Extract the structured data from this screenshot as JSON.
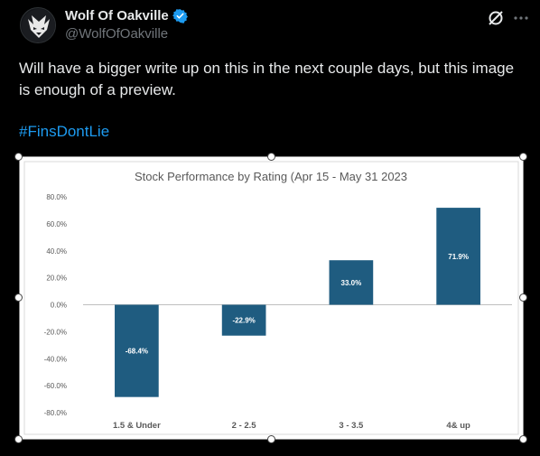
{
  "tweet": {
    "display_name": "Wolf Of Oakville",
    "handle": "@WolfOfOakville",
    "text": "Will have a bigger write up on this in the next couple days, but this image is enough of a preview.",
    "hashtag": "#FinsDontLie",
    "icons": {
      "verified": "verified-badge-icon",
      "grok": "grok-icon",
      "more": "more-options-icon",
      "avatar": "wolf-logo-avatar"
    },
    "colors": {
      "background": "#000000",
      "link": "#1d9bf0",
      "verified": "#1d9bf0",
      "muted": "#71767b"
    }
  },
  "chart_data": {
    "type": "bar",
    "title": "Stock Performance by Rating (Apr 15 - May 31 2023",
    "categories": [
      "1.5 & Under",
      "2 - 2.5",
      "3 - 3.5",
      "4& up"
    ],
    "values": [
      -68.4,
      -22.9,
      33.0,
      71.9
    ],
    "data_labels": [
      "-68.4%",
      "-22.9%",
      "33.0%",
      "71.9%"
    ],
    "ylim": [
      -80,
      80
    ],
    "y_ticks": [
      80,
      60,
      40,
      20,
      0,
      -20,
      -40,
      -60,
      -80
    ],
    "y_tick_labels": [
      "80.0%",
      "60.0%",
      "40.0%",
      "20.0%",
      "0.0%",
      "-20.0%",
      "-40.0%",
      "-60.0%",
      "-80.0%"
    ],
    "xlabel": "",
    "ylabel": "",
    "grid": false,
    "bar_color": "#1f5c80"
  }
}
